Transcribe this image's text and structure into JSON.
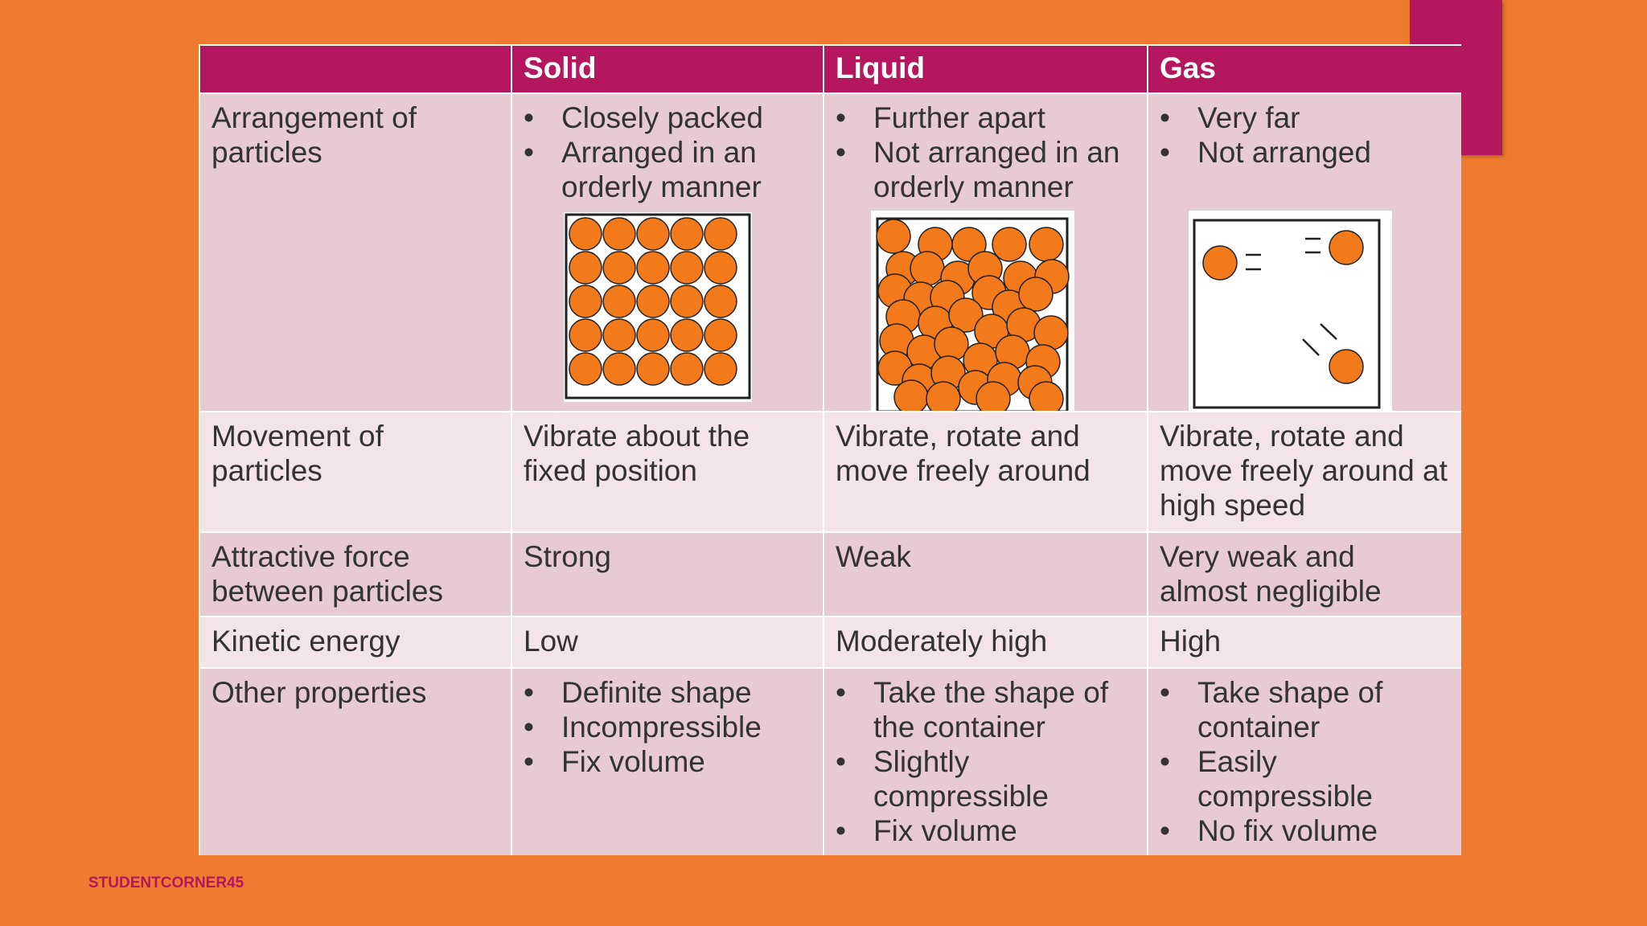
{
  "header": {
    "columns": [
      "Solid",
      "Liquid",
      "Gas"
    ]
  },
  "rows": [
    {
      "label": "Arrangement of particles",
      "cells": [
        [
          "Closely packed",
          "Arranged in an orderly manner"
        ],
        [
          "Further apart",
          "Not arranged in an orderly manner"
        ],
        [
          "Very far",
          "Not arranged"
        ]
      ]
    },
    {
      "label": "Movement of particles",
      "cells": [
        "Vibrate about the fixed position",
        "Vibrate, rotate and move freely around",
        "Vibrate, rotate and move freely around at high speed"
      ]
    },
    {
      "label": "Attractive force between particles",
      "cells": [
        "Strong",
        "Weak",
        "Very weak and almost negligible"
      ]
    },
    {
      "label": "Kinetic energy",
      "cells": [
        "Low",
        "Moderately high",
        "High"
      ]
    },
    {
      "label": "Other properties",
      "cells": [
        [
          "Definite shape",
          "Incompressible",
          "Fix volume"
        ],
        [
          "Take the shape of the container",
          "Slightly compressible",
          "Fix volume"
        ],
        [
          "Take shape of container",
          "Easily compressible",
          "No fix volume"
        ]
      ]
    }
  ],
  "footer": "STUDENTCORNER45"
}
